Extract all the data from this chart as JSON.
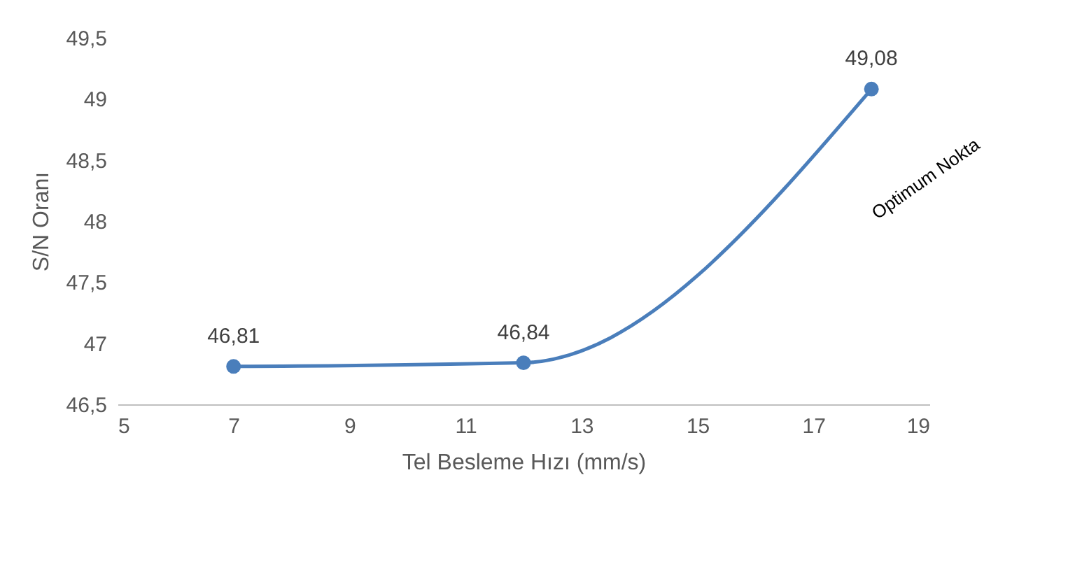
{
  "chart_data": {
    "type": "line",
    "xlabel": "Tel Besleme Hızı (mm/s)",
    "ylabel": "S/N Oranı",
    "x": [
      7,
      12,
      18
    ],
    "series": [
      {
        "color": "#4a7ebb",
        "values": [
          46.81,
          46.84,
          49.08
        ],
        "value_labels": [
          "46,81",
          "46,84",
          "49,08"
        ]
      }
    ],
    "xlim": [
      5,
      19
    ],
    "xticks": [
      5,
      7,
      9,
      11,
      13,
      15,
      17,
      19
    ],
    "ylim": [
      46.5,
      49.5
    ],
    "yticks": [
      {
        "value": 46.5,
        "label": "46,5"
      },
      47,
      {
        "value": 47.5,
        "label": "47,5"
      },
      48,
      {
        "value": 48.5,
        "label": "48,5"
      },
      49,
      {
        "value": 49.5,
        "label": "49,5"
      }
    ],
    "marker": "circle",
    "line_style": "solid",
    "grid": false,
    "annotations": [
      {
        "text": "Optimum Nokta",
        "x": 18,
        "y": 49.08
      }
    ]
  }
}
